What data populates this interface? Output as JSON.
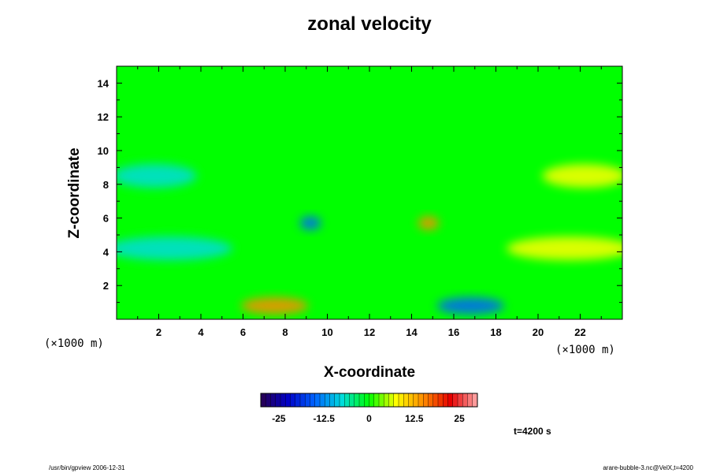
{
  "chart_data": {
    "type": "heatmap",
    "title": "zonal velocity",
    "xlabel": "X-coordinate",
    "ylabel": "Z-coordinate",
    "x_unit": "(×1000 m)",
    "y_unit": "(×1000 m)",
    "xlim": [
      0,
      24
    ],
    "ylim": [
      0,
      15
    ],
    "x_ticks": [
      "2",
      "4",
      "6",
      "8",
      "10",
      "12",
      "14",
      "16",
      "18",
      "20",
      "22"
    ],
    "y_ticks": [
      "2",
      "4",
      "6",
      "8",
      "10",
      "12",
      "14"
    ],
    "colorbar": {
      "range": [
        -30,
        30
      ],
      "tick_values": [
        -25,
        -12.5,
        0,
        12.5,
        25
      ],
      "tick_labels": [
        "-25",
        "-12.5",
        "0",
        "12.5",
        "25"
      ],
      "colors": [
        "#2a0050",
        "#0000c8",
        "#0064ff",
        "#00dcdc",
        "#00ff00",
        "#ffff00",
        "#ff8c00",
        "#e60000",
        "#ffaaaa"
      ]
    },
    "features": [
      {
        "x": 7.5,
        "z": 0.8,
        "value": 14,
        "sx": 1.6,
        "sz": 0.5
      },
      {
        "x": 16.8,
        "z": 0.8,
        "value": -14,
        "sx": 1.6,
        "sz": 0.5
      },
      {
        "x": 9.2,
        "z": 5.7,
        "value": -16,
        "sx": 0.5,
        "sz": 0.4
      },
      {
        "x": 14.8,
        "z": 5.7,
        "value": 16,
        "sx": 0.5,
        "sz": 0.4
      },
      {
        "x": 2.5,
        "z": 4.2,
        "value": -6,
        "sx": 3.0,
        "sz": 0.7
      },
      {
        "x": 21.5,
        "z": 4.2,
        "value": 6,
        "sx": 3.0,
        "sz": 0.7
      },
      {
        "x": 1.8,
        "z": 8.5,
        "value": -6,
        "sx": 2.0,
        "sz": 0.7
      },
      {
        "x": 22.2,
        "z": 8.5,
        "value": 6,
        "sx": 2.0,
        "sz": 0.7
      }
    ]
  },
  "time_label": "t=4200 s",
  "footer": {
    "left": "/usr/bin/gpview 2006-12-31",
    "right": "arare-bubble-3.nc@VelX,t=4200"
  }
}
